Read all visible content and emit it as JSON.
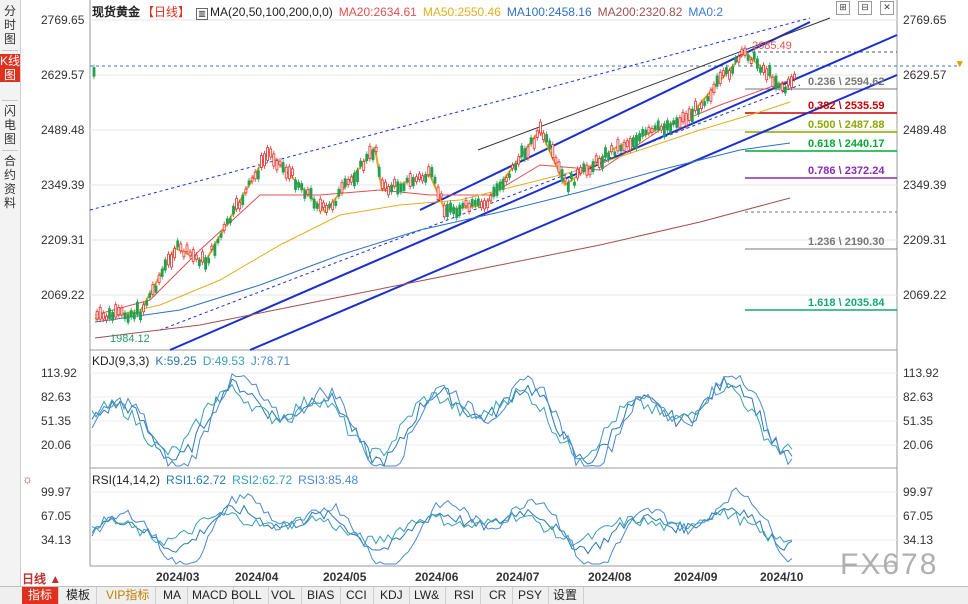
{
  "rail": {
    "tabs": [
      "分时图",
      "K线图",
      "闪电图",
      "合约资料"
    ],
    "active_index": 1
  },
  "price_panel": {
    "title": "现货黄金",
    "period": "【日线】",
    "ma_label": "MA(20,50,100,200,0,0)",
    "ma20": "MA20:2634.61",
    "ma50": "MA50:2550.46",
    "ma100": "MA100:2458.16",
    "ma200": "MA200:2320.82",
    "ma0": "MA0:2",
    "y_ticks": [
      "2769.65",
      "2629.57",
      "2489.48",
      "2349.39",
      "2209.31",
      "2069.22"
    ],
    "current_price": "2629.57",
    "high_label": "2685.49",
    "low_label": "1984.12",
    "fib_levels": [
      {
        "label": "0.236 \\ 2594.62",
        "color": "#777777"
      },
      {
        "label": "0.382 \\ 2535.59",
        "color": "#cc0000"
      },
      {
        "label": "0.500 \\ 2487.88",
        "color": "#88aa00"
      },
      {
        "label": "0.618 \\ 2440.17",
        "color": "#00aa33"
      },
      {
        "label": "0.786 \\ 2372.24",
        "color": "#8a2ab0"
      },
      {
        "label": "1.236 \\ 2190.30",
        "color": "#777777"
      },
      {
        "label": "1.618 \\ 2035.84",
        "color": "#11a878"
      }
    ],
    "colors": {
      "ma20": "#e05050",
      "ma50": "#e0b020",
      "ma100": "#3070c0",
      "ma200": "#a05050",
      "up": "#e03030",
      "down": "#20a050",
      "zigzag": "#f0a020",
      "channel": "#1a2fd0"
    }
  },
  "kdj_panel": {
    "title": "KDJ(9,3,3)",
    "k": "K:59.25",
    "d": "D:49.53",
    "j": "J:78.71",
    "y_ticks": [
      "113.92",
      "82.63",
      "51.35",
      "20.06"
    ]
  },
  "rsi_panel": {
    "title": "RSI(14,14,2)",
    "rsi1": "RSI1:62.72",
    "rsi2": "RSI2:62.72",
    "rsi3": "RSI3:85.48",
    "y_ticks": [
      "99.97",
      "67.05",
      "34.13"
    ]
  },
  "x_axis": {
    "period_button": "日线",
    "dates": [
      "2024/03",
      "2024/04",
      "2024/05",
      "2024/06",
      "2024/07",
      "2024/08",
      "2024/09",
      "2024/10"
    ]
  },
  "bottom_tabs": [
    "指标",
    "模板",
    "VIP指标",
    "MA",
    "MACD",
    "BOLL",
    "VOL",
    "BIAS",
    "CCI",
    "KDJ",
    "LW&",
    "RSI",
    "CR",
    "PSY",
    "设置"
  ],
  "watermark": "FX678",
  "corner_buttons": [
    "⊞",
    "⊟",
    "✕"
  ]
}
